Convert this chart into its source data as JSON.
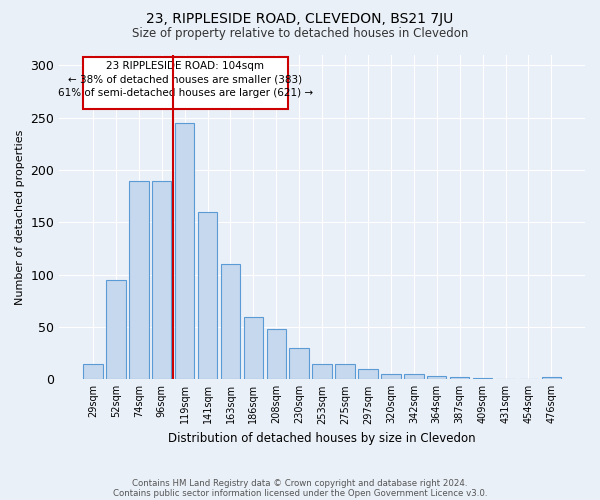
{
  "title": "23, RIPPLESIDE ROAD, CLEVEDON, BS21 7JU",
  "subtitle": "Size of property relative to detached houses in Clevedon",
  "xlabel": "Distribution of detached houses by size in Clevedon",
  "ylabel": "Number of detached properties",
  "footer1": "Contains HM Land Registry data © Crown copyright and database right 2024.",
  "footer2": "Contains public sector information licensed under the Open Government Licence v3.0.",
  "annotation_line1": "23 RIPPLESIDE ROAD: 104sqm",
  "annotation_line2": "← 38% of detached houses are smaller (383)",
  "annotation_line3": "61% of semi-detached houses are larger (621) →",
  "bar_labels": [
    "29sqm",
    "52sqm",
    "74sqm",
    "96sqm",
    "119sqm",
    "141sqm",
    "163sqm",
    "186sqm",
    "208sqm",
    "230sqm",
    "253sqm",
    "275sqm",
    "297sqm",
    "320sqm",
    "342sqm",
    "364sqm",
    "387sqm",
    "409sqm",
    "431sqm",
    "454sqm",
    "476sqm"
  ],
  "bar_values": [
    15,
    95,
    190,
    190,
    245,
    160,
    110,
    60,
    48,
    30,
    15,
    15,
    10,
    5,
    5,
    3,
    2,
    1,
    0,
    0,
    2
  ],
  "bar_color": "#c5d8ed",
  "bar_edgecolor": "#5b9bd5",
  "red_line_index": 4,
  "ylim": [
    0,
    310
  ],
  "yticks": [
    0,
    50,
    100,
    150,
    200,
    250,
    300
  ],
  "bg_color": "#eaf0f8",
  "plot_bg_color": "#eaf0f8",
  "annotation_box_edgecolor": "#cc0000",
  "annotation_box_facecolor": "#ffffff",
  "red_line_color": "#cc0000"
}
